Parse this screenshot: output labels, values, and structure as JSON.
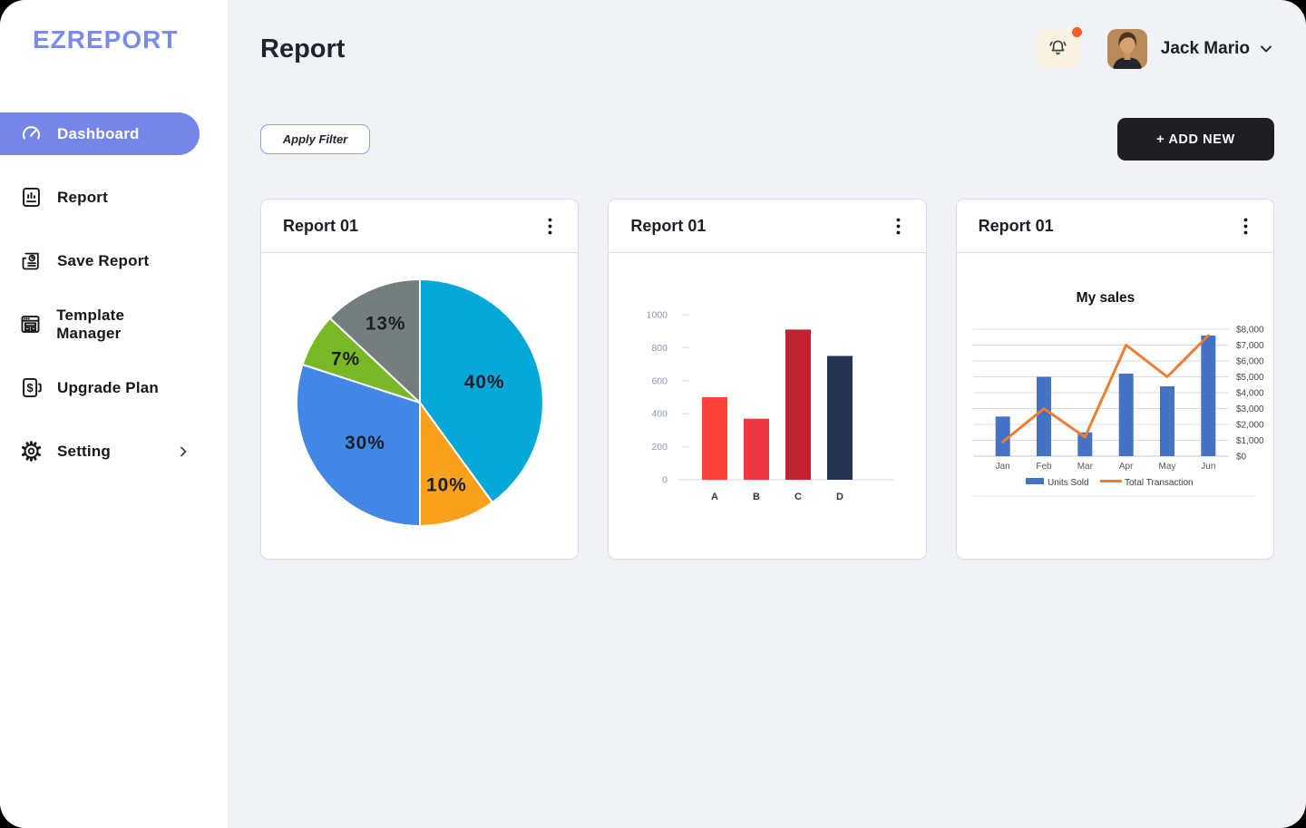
{
  "app_name": "EZREPORT",
  "sidebar": {
    "logo": "EZREPORT",
    "items": [
      {
        "label": "Dashboard",
        "icon": "gauge-icon",
        "active": true
      },
      {
        "label": "Report",
        "icon": "report-icon",
        "active": false
      },
      {
        "label": "Save Report",
        "icon": "save-report-icon",
        "active": false
      },
      {
        "label": "Template Manager",
        "icon": "template-manager-icon",
        "active": false
      },
      {
        "label": "Upgrade Plan",
        "icon": "upgrade-plan-icon",
        "active": false
      },
      {
        "label": "Setting",
        "icon": "gear-icon",
        "active": false,
        "has_chevron": true
      }
    ]
  },
  "header": {
    "page_title": "Report",
    "user_name": "Jack Mario",
    "notification_dot": true
  },
  "toolbar": {
    "apply_filter_label": "Apply Filter",
    "add_new_label": "+ ADD NEW"
  },
  "cards": [
    {
      "title": "Report 01"
    },
    {
      "title": "Report 01"
    },
    {
      "title": "Report 01"
    }
  ],
  "colors": {
    "accent": "#7585E8",
    "logo": "#7B8BE8",
    "page_bg": "#F1F2F6",
    "card_border": "#DCDBEC",
    "bell_bg": "#FAF3E2",
    "notification_dot": "#FB5A25",
    "add_new_bg": "#1F1F23"
  },
  "chart_data": [
    {
      "type": "pie",
      "labels": [
        "40%",
        "10%",
        "30%",
        "7%",
        "13%"
      ],
      "values": [
        40,
        10,
        30,
        7,
        13
      ],
      "colors": [
        "#06A7D9",
        "#F9A11C",
        "#4387E6",
        "#78B726",
        "#757E7F"
      ],
      "start_angle_deg": 0,
      "direction": "clockwise",
      "label_color": "#1B1F27"
    },
    {
      "type": "bar",
      "categories": [
        "A",
        "B",
        "C",
        "D"
      ],
      "values": [
        500,
        370,
        910,
        750
      ],
      "colors": [
        "#FB4238",
        "#ED3A42",
        "#C22333",
        "#263351"
      ],
      "ylim": [
        0,
        1000
      ],
      "yticks": [
        0,
        200,
        400,
        600,
        800,
        1000
      ],
      "tick_label_color": "#8C97A9",
      "xlabel_color": "#2B3650",
      "grid": false
    },
    {
      "type": "combo",
      "title": "My sales",
      "categories": [
        "Jan",
        "Feb",
        "Mar",
        "Apr",
        "May",
        "Jun"
      ],
      "series": [
        {
          "name": "Units Sold",
          "kind": "bar",
          "color": "#4472C4",
          "values": [
            2500,
            5000,
            1500,
            5200,
            4400,
            7600
          ]
        },
        {
          "name": "Total Transaction",
          "kind": "line",
          "color": "#ED7D31",
          "values": [
            900,
            3000,
            1200,
            7000,
            5000,
            7600
          ]
        }
      ],
      "ylim": [
        0,
        8000
      ],
      "ytick_step": 1000,
      "ytick_labels": [
        "$0",
        "$1,000",
        "$2,000",
        "$3,000",
        "$4,000",
        "$5,000",
        "$6,000",
        "$7,000",
        "$8,000"
      ],
      "axis_side": "right",
      "grid": true,
      "legend_position": "bottom"
    }
  ]
}
